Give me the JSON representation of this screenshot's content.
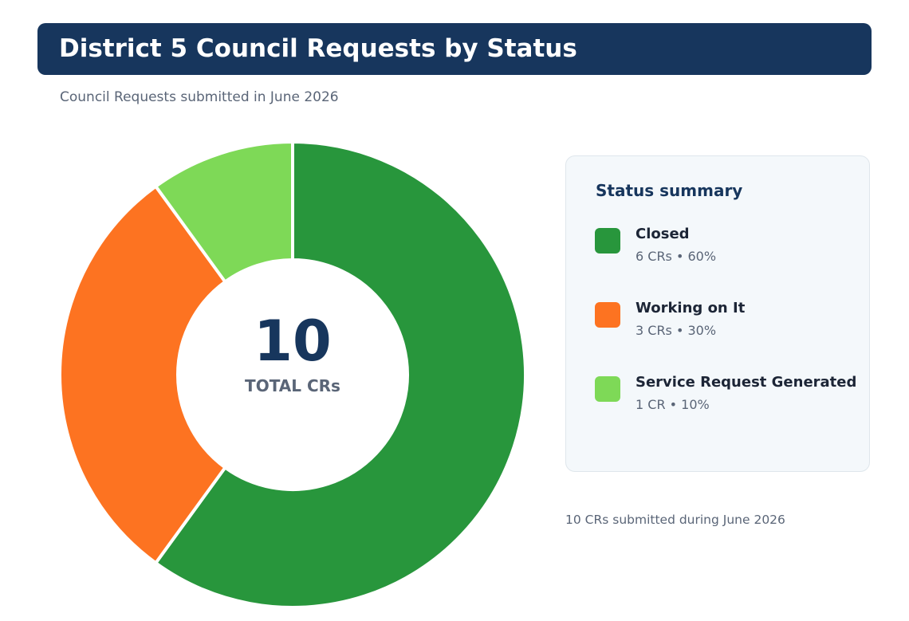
{
  "title": "District 5 Council Requests by Status",
  "subtitle": "Council Requests submitted in June 2026",
  "center": {
    "total": "10",
    "label": "TOTAL CRs"
  },
  "summary": {
    "title": "Status summary",
    "items": [
      {
        "name": "Closed",
        "detail": "6 CRs  •  60%",
        "color": "#28963c"
      },
      {
        "name": "Working on It",
        "detail": "3 CRs  •  30%",
        "color": "#fd7321"
      },
      {
        "name": "Service Request Generated",
        "detail": "1 CR  •  10%",
        "color": "#7ed957"
      }
    ]
  },
  "footer": "10 CRs submitted during June 2026",
  "chart_data": {
    "type": "pie",
    "variant": "donut",
    "categories": [
      "Closed",
      "Working on It",
      "Service Request Generated"
    ],
    "values": [
      6,
      3,
      1
    ],
    "percentages": [
      60,
      30,
      10
    ],
    "colors": [
      "#28963c",
      "#fd7321",
      "#7ed957"
    ],
    "total": 10,
    "center_label": "TOTAL CRs",
    "legend_placement": "right"
  }
}
